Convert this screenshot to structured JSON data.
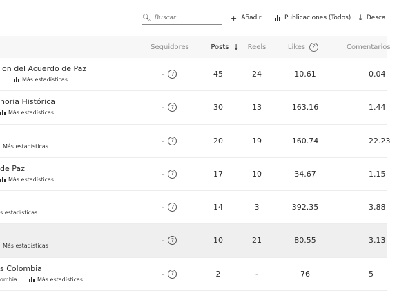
{
  "toolbar": {
    "search_placeholder": "Buscar",
    "add_label": "Añadir",
    "publications_label": "Publicaciones (Todos)",
    "download_label": "Desca"
  },
  "columns": {
    "seguidores": "Seguidores",
    "posts": "Posts",
    "reels": "Reels",
    "likes": "Likes",
    "comentarios": "Comentarios"
  },
  "rows": [
    {
      "name": "ion del Acuerdo de Paz",
      "stats_prefix": "",
      "stats_label": "Más estadísticas",
      "seguidores": "-",
      "posts": "45",
      "reels": "24",
      "likes": "10.61",
      "comentarios": "0.04"
    },
    {
      "name": "noria Histórica",
      "stats_prefix": "",
      "stats_label": "Más estadísticas",
      "seguidores": "-",
      "posts": "30",
      "reels": "13",
      "likes": "163.16",
      "comentarios": "1.44"
    },
    {
      "name": "",
      "stats_prefix": "",
      "stats_label": "Más estadísticas",
      "seguidores": "-",
      "posts": "20",
      "reels": "19",
      "likes": "160.74",
      "comentarios": "22.23"
    },
    {
      "name": "de Paz",
      "stats_prefix": "",
      "stats_label": "Más estadísticas",
      "seguidores": "-",
      "posts": "17",
      "reels": "10",
      "likes": "34.67",
      "comentarios": "1.15"
    },
    {
      "name": "",
      "stats_prefix": "",
      "stats_label": "s estadísticas",
      "seguidores": "-",
      "posts": "14",
      "reels": "3",
      "likes": "392.35",
      "comentarios": "3.88"
    },
    {
      "name": "",
      "stats_prefix": "",
      "stats_label": "Más estadísticas",
      "seguidores": "-",
      "posts": "10",
      "reels": "21",
      "likes": "80.55",
      "comentarios": "3.13"
    },
    {
      "name": "s Colombia",
      "stats_prefix": "ombia",
      "stats_label": "Más estadísticas",
      "seguidores": "-",
      "posts": "2",
      "reels": "-",
      "likes": "76",
      "comentarios": "5"
    }
  ]
}
